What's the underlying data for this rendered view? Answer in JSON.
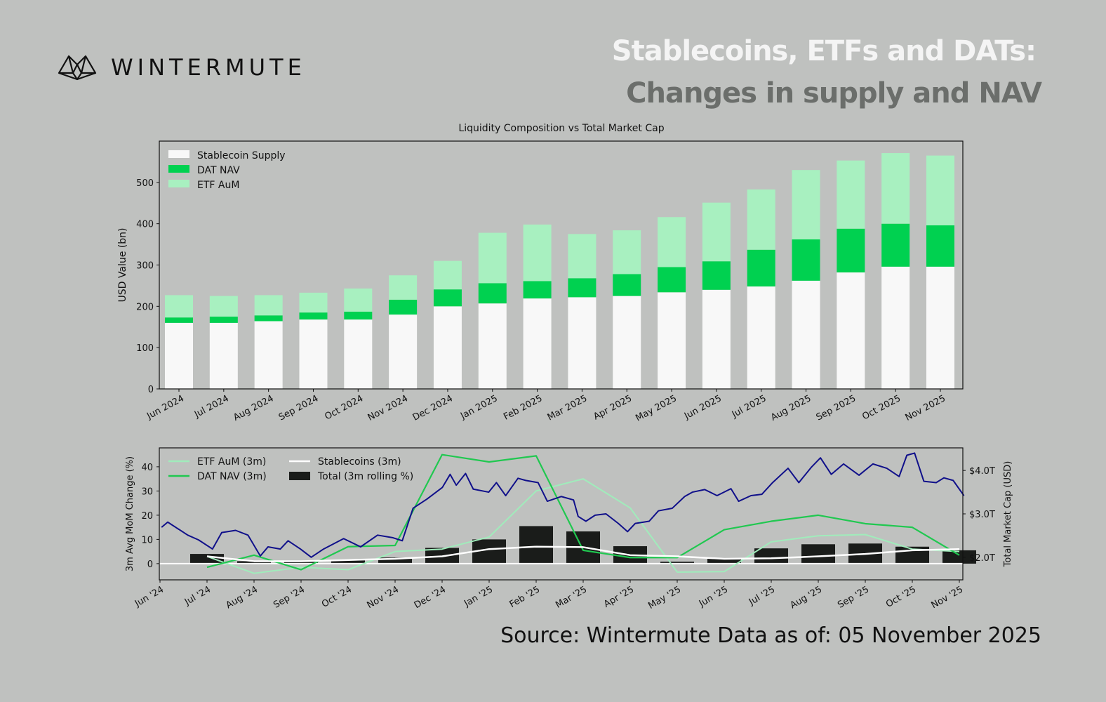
{
  "brand": {
    "name": "WINTERMUTE"
  },
  "header": {
    "title_line1": "Stablecoins, ETFs and DATs:",
    "title_line2": "Changes in supply and NAV"
  },
  "footer": {
    "source": "Source: Wintermute  Data as of: 05 November 2025"
  },
  "colors": {
    "background": "#bfc1bf",
    "stablecoin": "#f8f8f8",
    "dat": "#00d150",
    "etf": "#a8f0c0",
    "market_cap": "#10108a",
    "dat_line": "#20c850",
    "etf_line": "#a0ecbb",
    "total_bar": "#1a1c1a"
  },
  "chart_data": [
    {
      "type": "bar",
      "stacked": true,
      "title": "Liquidity Composition vs Total Market Cap",
      "xlabel": "",
      "ylabel": "USD Value (bn)",
      "ylim": [
        0,
        600
      ],
      "yticks": [
        0,
        100,
        200,
        300,
        400,
        500
      ],
      "legend": "top-left",
      "grid": false,
      "categories": [
        "Jun 2024",
        "Jul 2024",
        "Aug 2024",
        "Sep 2024",
        "Oct 2024",
        "Nov 2024",
        "Dec 2024",
        "Jan 2025",
        "Feb 2025",
        "Mar 2025",
        "Apr 2025",
        "May 2025",
        "Jun 2025",
        "Jul 2025",
        "Aug 2025",
        "Sep 2025",
        "Oct 2025",
        "Nov 2025"
      ],
      "series": [
        {
          "name": "Stablecoin Supply",
          "values": [
            160,
            160,
            164,
            168,
            168,
            180,
            200,
            207,
            219,
            222,
            225,
            234,
            240,
            248,
            262,
            282,
            296,
            296
          ]
        },
        {
          "name": "DAT NAV",
          "values": [
            13,
            15,
            14,
            17,
            19,
            36,
            41,
            49,
            42,
            46,
            53,
            61,
            69,
            89,
            100,
            106,
            104,
            100
          ]
        },
        {
          "name": "ETF AuM",
          "values": [
            54,
            50,
            49,
            48,
            56,
            59,
            69,
            122,
            137,
            107,
            106,
            121,
            142,
            146,
            168,
            165,
            171,
            169
          ]
        }
      ]
    },
    {
      "type": "bar+line",
      "xlabel": "",
      "ylabel": "3m Avg MoM Change (%)",
      "ylabel_right": "Total Market Cap (USD)",
      "ylim": [
        -6.7,
        47.8
      ],
      "yticks": [
        0,
        10,
        20,
        30,
        40
      ],
      "ylim_right": [
        1.48,
        4.52
      ],
      "yticks_right": [
        "$2.0T",
        "$3.0T",
        "$4.0T"
      ],
      "yticks_right_values": [
        2.0,
        3.0,
        4.0
      ],
      "legend": "top-left",
      "grid": false,
      "xticks": [
        "Jun '24",
        "Jul '24",
        "Aug '24",
        "Sep '24",
        "Oct '24",
        "Nov '24",
        "Dec '24",
        "Jan '25",
        "Feb '25",
        "Mar '25",
        "Apr '25",
        "May '25",
        "Jun '25",
        "Jul '25",
        "Aug '25",
        "Sep '25",
        "Oct '25",
        "Nov '25"
      ],
      "months": [
        "2024-07",
        "2024-08",
        "2024-09",
        "2024-10",
        "2024-11",
        "2024-12",
        "2025-01",
        "2025-02",
        "2025-03",
        "2025-04",
        "2025-05",
        "2025-06",
        "2025-07",
        "2025-08",
        "2025-09",
        "2025-10",
        "2025-11"
      ],
      "series": [
        {
          "name": "ETF AuM (3m)",
          "kind": "line",
          "values": [
            3,
            -4,
            -1.5,
            -2.5,
            5,
            6,
            11,
            30,
            35,
            23,
            -3.5,
            -3.3,
            9,
            11.5,
            12,
            6,
            5
          ]
        },
        {
          "name": "DAT NAV (3m)",
          "kind": "line",
          "values": [
            -1.5,
            3.5,
            -2.5,
            7,
            7.5,
            45,
            42,
            44.5,
            5.5,
            2.5,
            2.5,
            14,
            17.5,
            20,
            16.5,
            15,
            3.5
          ]
        },
        {
          "name": "Stablecoins (3m)",
          "kind": "line",
          "values": [
            3,
            1,
            1,
            1.5,
            2,
            3,
            6,
            7,
            6.8,
            3.5,
            3,
            2,
            2.2,
            3,
            4,
            5.5,
            6
          ]
        },
        {
          "name": "Total (3m rolling %)",
          "kind": "bar",
          "values": [
            4,
            1,
            1,
            1.5,
            2.5,
            6.5,
            10,
            15.5,
            13.3,
            7.2,
            0.8,
            2.3,
            6.3,
            8,
            8.3,
            7,
            5.5
          ]
        }
      ],
      "market_cap_trillions": [
        [
          "2024-06-02",
          2.69
        ],
        [
          "2024-06-06",
          2.81
        ],
        [
          "2024-06-19",
          2.51
        ],
        [
          "2024-06-26",
          2.4
        ],
        [
          "2024-07-05",
          2.19
        ],
        [
          "2024-07-11",
          2.57
        ],
        [
          "2024-07-20",
          2.62
        ],
        [
          "2024-07-28",
          2.51
        ],
        [
          "2024-08-05",
          2.03
        ],
        [
          "2024-08-10",
          2.24
        ],
        [
          "2024-08-18",
          2.19
        ],
        [
          "2024-08-23",
          2.38
        ],
        [
          "2024-08-31",
          2.19
        ],
        [
          "2024-09-07",
          2.0
        ],
        [
          "2024-09-15",
          2.19
        ],
        [
          "2024-09-28",
          2.43
        ],
        [
          "2024-10-09",
          2.24
        ],
        [
          "2024-10-20",
          2.51
        ],
        [
          "2024-10-30",
          2.45
        ],
        [
          "2024-11-05",
          2.38
        ],
        [
          "2024-11-12",
          3.13
        ],
        [
          "2024-11-21",
          3.34
        ],
        [
          "2024-12-01",
          3.61
        ],
        [
          "2024-12-06",
          3.91
        ],
        [
          "2024-12-10",
          3.66
        ],
        [
          "2024-12-16",
          3.93
        ],
        [
          "2024-12-21",
          3.57
        ],
        [
          "2024-12-31",
          3.5
        ],
        [
          "2025-01-05",
          3.72
        ],
        [
          "2025-01-11",
          3.42
        ],
        [
          "2025-01-19",
          3.82
        ],
        [
          "2025-01-24",
          3.77
        ],
        [
          "2025-02-01",
          3.72
        ],
        [
          "2025-02-07",
          3.29
        ],
        [
          "2025-02-16",
          3.4
        ],
        [
          "2025-02-24",
          3.32
        ],
        [
          "2025-02-27",
          2.94
        ],
        [
          "2025-03-04",
          2.83
        ],
        [
          "2025-03-10",
          2.97
        ],
        [
          "2025-03-17",
          3.0
        ],
        [
          "2025-03-25",
          2.78
        ],
        [
          "2025-03-31",
          2.59
        ],
        [
          "2025-04-05",
          2.78
        ],
        [
          "2025-04-14",
          2.83
        ],
        [
          "2025-04-20",
          3.07
        ],
        [
          "2025-04-29",
          3.13
        ],
        [
          "2025-05-07",
          3.4
        ],
        [
          "2025-05-12",
          3.5
        ],
        [
          "2025-05-20",
          3.56
        ],
        [
          "2025-05-28",
          3.42
        ],
        [
          "2025-06-06",
          3.58
        ],
        [
          "2025-06-11",
          3.29
        ],
        [
          "2025-06-19",
          3.42
        ],
        [
          "2025-06-26",
          3.45
        ],
        [
          "2025-07-03",
          3.72
        ],
        [
          "2025-07-13",
          4.05
        ],
        [
          "2025-07-20",
          3.72
        ],
        [
          "2025-07-28",
          4.07
        ],
        [
          "2025-08-03",
          4.29
        ],
        [
          "2025-08-10",
          3.91
        ],
        [
          "2025-08-18",
          4.15
        ],
        [
          "2025-08-28",
          3.89
        ],
        [
          "2025-09-06",
          4.15
        ],
        [
          "2025-09-15",
          4.05
        ],
        [
          "2025-09-23",
          3.86
        ],
        [
          "2025-09-28",
          4.35
        ],
        [
          "2025-10-03",
          4.4
        ],
        [
          "2025-10-09",
          3.75
        ],
        [
          "2025-10-17",
          3.72
        ],
        [
          "2025-10-22",
          3.83
        ],
        [
          "2025-10-28",
          3.77
        ],
        [
          "2025-11-04",
          3.42
        ]
      ]
    }
  ]
}
